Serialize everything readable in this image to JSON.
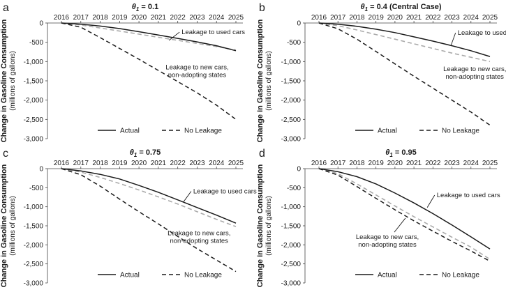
{
  "chart_data": [
    {
      "type": "line",
      "panel_label": "a",
      "title": "θ1 = 0.1",
      "title_symbol": "θ",
      "title_sub": "1",
      "title_rest": " = 0.1",
      "ylabel": "Change in Gasoline Consumption",
      "ylabel_sub": "(millions of gallons)",
      "x": [
        2016,
        2017,
        2018,
        2019,
        2020,
        2021,
        2022,
        2023,
        2024,
        2025
      ],
      "x_ticks": [
        "2016",
        "2017",
        "2018",
        "2019",
        "2020",
        "2021",
        "2022",
        "2023",
        "2024",
        "2025"
      ],
      "ylim": [
        -3000,
        0
      ],
      "y_ticks": [
        "0",
        "-500",
        "-1,000",
        "-1,500",
        "-2,000",
        "-2,500",
        "-3,000"
      ],
      "grid": false,
      "legend": "bottom",
      "series": [
        {
          "name": "Actual",
          "style": "solid",
          "color": "#1a1a1a",
          "values": [
            0,
            -30,
            -80,
            -145,
            -225,
            -310,
            -400,
            -490,
            -590,
            -720
          ]
        },
        {
          "name": "No Leakage",
          "style": "dashed",
          "color": "#1a1a1a",
          "values": [
            0,
            -110,
            -380,
            -660,
            -940,
            -1230,
            -1520,
            -1810,
            -2130,
            -2500
          ]
        },
        {
          "name": "",
          "style": "dashed",
          "color": "#aaaaaa",
          "values": [
            0,
            -50,
            -130,
            -210,
            -290,
            -370,
            -450,
            -530,
            -610,
            -700
          ]
        }
      ],
      "annotations": [
        {
          "text": [
            "Leakage to used cars"
          ],
          "at": [
            2021.55,
            -450
          ],
          "text_at": [
            2022.2,
            -290
          ],
          "align": "start"
        },
        {
          "text": [
            "Leakage to new cars,",
            "non-adopting states"
          ],
          "at": null,
          "text_at": [
            2023,
            -1200
          ],
          "align": "middle"
        }
      ]
    },
    {
      "type": "line",
      "panel_label": "b",
      "title": "θ1 = 0.4 (Central Case)",
      "title_symbol": "θ",
      "title_sub": "1",
      "title_rest": " = 0.4 (Central Case)",
      "ylabel": "Change in Gasoline Consumption",
      "ylabel_sub": "(millions of gallons)",
      "x": [
        2016,
        2017,
        2018,
        2019,
        2020,
        2021,
        2022,
        2023,
        2024,
        2025
      ],
      "x_ticks": [
        "2016",
        "2017",
        "2018",
        "2019",
        "2020",
        "2021",
        "2022",
        "2023",
        "2024",
        "2025"
      ],
      "ylim": [
        -3000,
        0
      ],
      "y_ticks": [
        "0",
        "-500",
        "-1,000",
        "-1,500",
        "-2,000",
        "-2,500",
        "-3,000"
      ],
      "grid": false,
      "legend": "bottom",
      "series": [
        {
          "name": "Actual",
          "style": "solid",
          "color": "#1a1a1a",
          "values": [
            0,
            -30,
            -85,
            -160,
            -250,
            -360,
            -470,
            -590,
            -720,
            -870
          ]
        },
        {
          "name": "No Leakage",
          "style": "dashed",
          "color": "#1a1a1a",
          "values": [
            0,
            -150,
            -420,
            -740,
            -1060,
            -1380,
            -1690,
            -2000,
            -2310,
            -2650
          ]
        },
        {
          "name": "",
          "style": "dashed",
          "color": "#aaaaaa",
          "values": [
            0,
            -70,
            -180,
            -300,
            -420,
            -540,
            -660,
            -780,
            -890,
            -1000
          ]
        }
      ],
      "annotations": [
        {
          "text": [
            "Leakage to used cars"
          ],
          "at": [
            2022.95,
            -580
          ],
          "text_at": [
            2023.3,
            -310
          ],
          "align": "start"
        },
        {
          "text": [
            "Leakage to new cars,",
            "non-adopting states"
          ],
          "at": null,
          "text_at": [
            2024.2,
            -1250
          ],
          "align": "middle"
        }
      ]
    },
    {
      "type": "line",
      "panel_label": "c",
      "title": "θ1 = 0.75",
      "title_symbol": "θ",
      "title_sub": "1",
      "title_rest": " = 0.75",
      "ylabel": "Change in Gasoline Consumption",
      "ylabel_sub": "(millions of gallons)",
      "x": [
        2016,
        2017,
        2018,
        2019,
        2020,
        2021,
        2022,
        2023,
        2024,
        2025
      ],
      "x_ticks": [
        "2016",
        "2017",
        "2018",
        "2019",
        "2020",
        "2021",
        "2022",
        "2023",
        "2024",
        "2025"
      ],
      "ylim": [
        -3000,
        0
      ],
      "y_ticks": [
        "0",
        "-500",
        "-1,000",
        "-1,500",
        "-2,000",
        "-2,500",
        "-3,000"
      ],
      "grid": false,
      "legend": "bottom",
      "series": [
        {
          "name": "Actual",
          "style": "solid",
          "color": "#1a1a1a",
          "values": [
            0,
            -60,
            -150,
            -270,
            -440,
            -620,
            -820,
            -1020,
            -1220,
            -1430
          ]
        },
        {
          "name": "No Leakage",
          "style": "dashed",
          "color": "#1a1a1a",
          "values": [
            0,
            -160,
            -460,
            -800,
            -1130,
            -1450,
            -1780,
            -2100,
            -2400,
            -2700
          ]
        },
        {
          "name": "",
          "style": "dashed",
          "color": "#aaaaaa",
          "values": [
            0,
            -90,
            -230,
            -390,
            -560,
            -740,
            -930,
            -1130,
            -1330,
            -1520
          ]
        }
      ],
      "annotations": [
        {
          "text": [
            "Leakage to used cars"
          ],
          "at": [
            2022.3,
            -870
          ],
          "text_at": [
            2022.8,
            -650
          ],
          "align": "start"
        },
        {
          "text": [
            "Leakage to new cars,",
            "non-adopting states"
          ],
          "at": null,
          "text_at": [
            2023.1,
            -1750
          ],
          "align": "middle"
        }
      ]
    },
    {
      "type": "line",
      "panel_label": "d",
      "title": "θ1 = 0.95",
      "title_symbol": "θ",
      "title_sub": "1",
      "title_rest": " = 0.95",
      "ylabel": "Change in Gasoline Consumption",
      "ylabel_sub": "(millions of gallons)",
      "x": [
        2016,
        2017,
        2018,
        2019,
        2020,
        2021,
        2022,
        2023,
        2024,
        2025
      ],
      "x_ticks": [
        "2016",
        "2017",
        "2018",
        "2019",
        "2020",
        "2021",
        "2022",
        "2023",
        "2024",
        "2025"
      ],
      "ylim": [
        -3000,
        0
      ],
      "y_ticks": [
        "0",
        "-500",
        "-1,000",
        "-1,500",
        "-2,000",
        "-2,500",
        "-3,000"
      ],
      "grid": false,
      "legend": "bottom",
      "series": [
        {
          "name": "Actual",
          "style": "solid",
          "color": "#1a1a1a",
          "values": [
            0,
            -80,
            -210,
            -400,
            -640,
            -900,
            -1180,
            -1480,
            -1790,
            -2110
          ]
        },
        {
          "name": "No Leakage",
          "style": "dashed",
          "color": "#1a1a1a",
          "values": [
            0,
            -170,
            -470,
            -780,
            -1080,
            -1370,
            -1640,
            -1910,
            -2160,
            -2430
          ]
        },
        {
          "name": "",
          "style": "dashed",
          "color": "#aaaaaa",
          "values": [
            0,
            -130,
            -400,
            -690,
            -980,
            -1260,
            -1530,
            -1800,
            -2060,
            -2380
          ]
        }
      ],
      "annotations": [
        {
          "text": [
            "Leakage to used cars"
          ],
          "at": [
            2021.7,
            -1020
          ],
          "text_at": [
            2022.2,
            -750
          ],
          "align": "start"
        },
        {
          "text": [
            "Leakage to new cars,",
            "non-adopting states"
          ],
          "at": [
            2020.55,
            -1300
          ],
          "text_at": [
            2019.6,
            -1850
          ],
          "align": "middle"
        }
      ]
    }
  ]
}
